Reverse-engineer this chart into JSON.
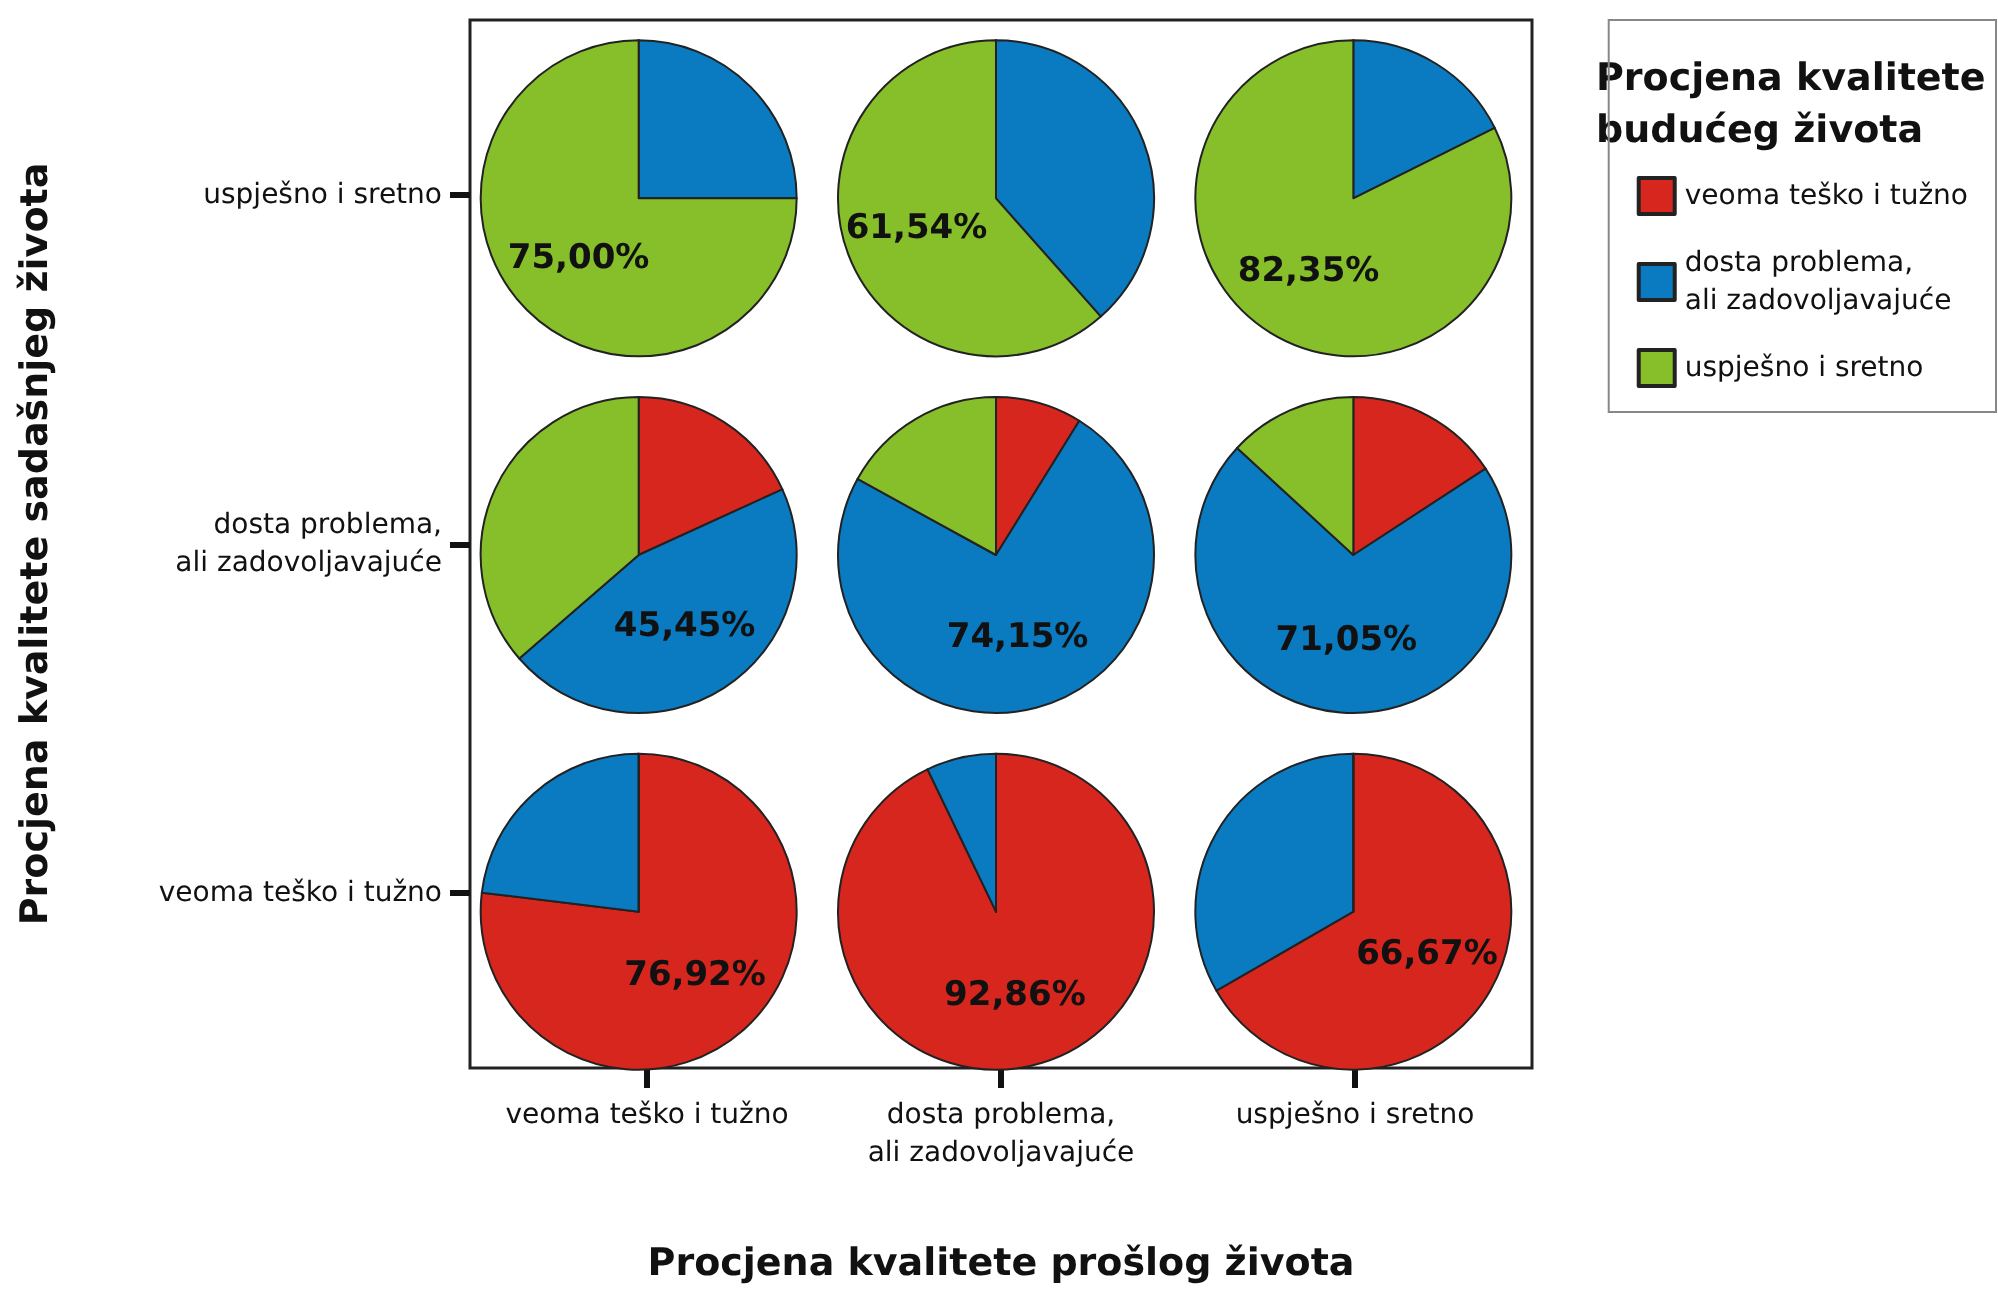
{
  "chart_data": [
    {
      "type": "other",
      "xlabel": "Procjena kvalitete prošlog života",
      "ylabel": "Procjena kvalitete sadašnjeg života",
      "categories": [
        "veoma teško i tužno",
        "dosta problema,\nali zadovoljavajuće",
        "uspješno i sretno"
      ],
      "y_categories": [
        "uspješno i sretno",
        "dosta problema,\nali zadovoljavajuće",
        "veoma teško i tužno"
      ]
    },
    {
      "type": "pie",
      "legend_title": "Procjena kvalitete\nbudućeg života",
      "legend": "right",
      "categories": [
        "veoma teško i tužno",
        "dosta problema,\nali zadovoljavajuće",
        "uspješno i sretno"
      ],
      "values": [
        0,
        25,
        75
      ],
      "colors": [
        "#d7261e",
        "#0a7bc1",
        "#86bf2a"
      ],
      "value_labels": [
        null,
        null,
        "75,00%"
      ]
    },
    {
      "type": "pie",
      "values": [
        0,
        38.46,
        61.54
      ],
      "colors": [
        "#d7261e",
        "#0a7bc1",
        "#86bf2a"
      ],
      "value_labels": [
        null,
        null,
        "61,54%"
      ]
    },
    {
      "type": "pie",
      "values": [
        0,
        17.65,
        82.35
      ],
      "colors": [
        "#d7261e",
        "#0a7bc1",
        "#86bf2a"
      ],
      "value_labels": [
        null,
        null,
        "82,35%"
      ]
    },
    {
      "type": "pie",
      "values": [
        18.18,
        45.45,
        36.37
      ],
      "colors": [
        "#d7261e",
        "#0a7bc1",
        "#86bf2a"
      ],
      "value_labels": [
        null,
        "45,45%",
        null
      ]
    },
    {
      "type": "pie",
      "values": [
        8.84,
        74.15,
        17.01
      ],
      "colors": [
        "#d7261e",
        "#0a7bc1",
        "#86bf2a"
      ],
      "value_labels": [
        null,
        "74,15%",
        null
      ]
    },
    {
      "type": "pie",
      "values": [
        15.79,
        71.05,
        13.16
      ],
      "colors": [
        "#d7261e",
        "#0a7bc1",
        "#86bf2a"
      ],
      "value_labels": [
        null,
        "71,05%",
        null
      ]
    },
    {
      "type": "pie",
      "values": [
        76.92,
        23.08,
        0
      ],
      "colors": [
        "#d7261e",
        "#0a7bc1",
        "#86bf2a"
      ],
      "value_labels": [
        "76,92%",
        null,
        null
      ]
    },
    {
      "type": "pie",
      "values": [
        92.86,
        7.14,
        0
      ],
      "colors": [
        "#d7261e",
        "#0a7bc1",
        "#86bf2a"
      ],
      "value_labels": [
        "92,86%",
        null,
        null
      ]
    },
    {
      "type": "pie",
      "values": [
        66.67,
        33.33,
        0
      ],
      "colors": [
        "#d7261e",
        "#0a7bc1",
        "#86bf2a"
      ],
      "value_labels": [
        "66,67%",
        null,
        null
      ]
    }
  ]
}
